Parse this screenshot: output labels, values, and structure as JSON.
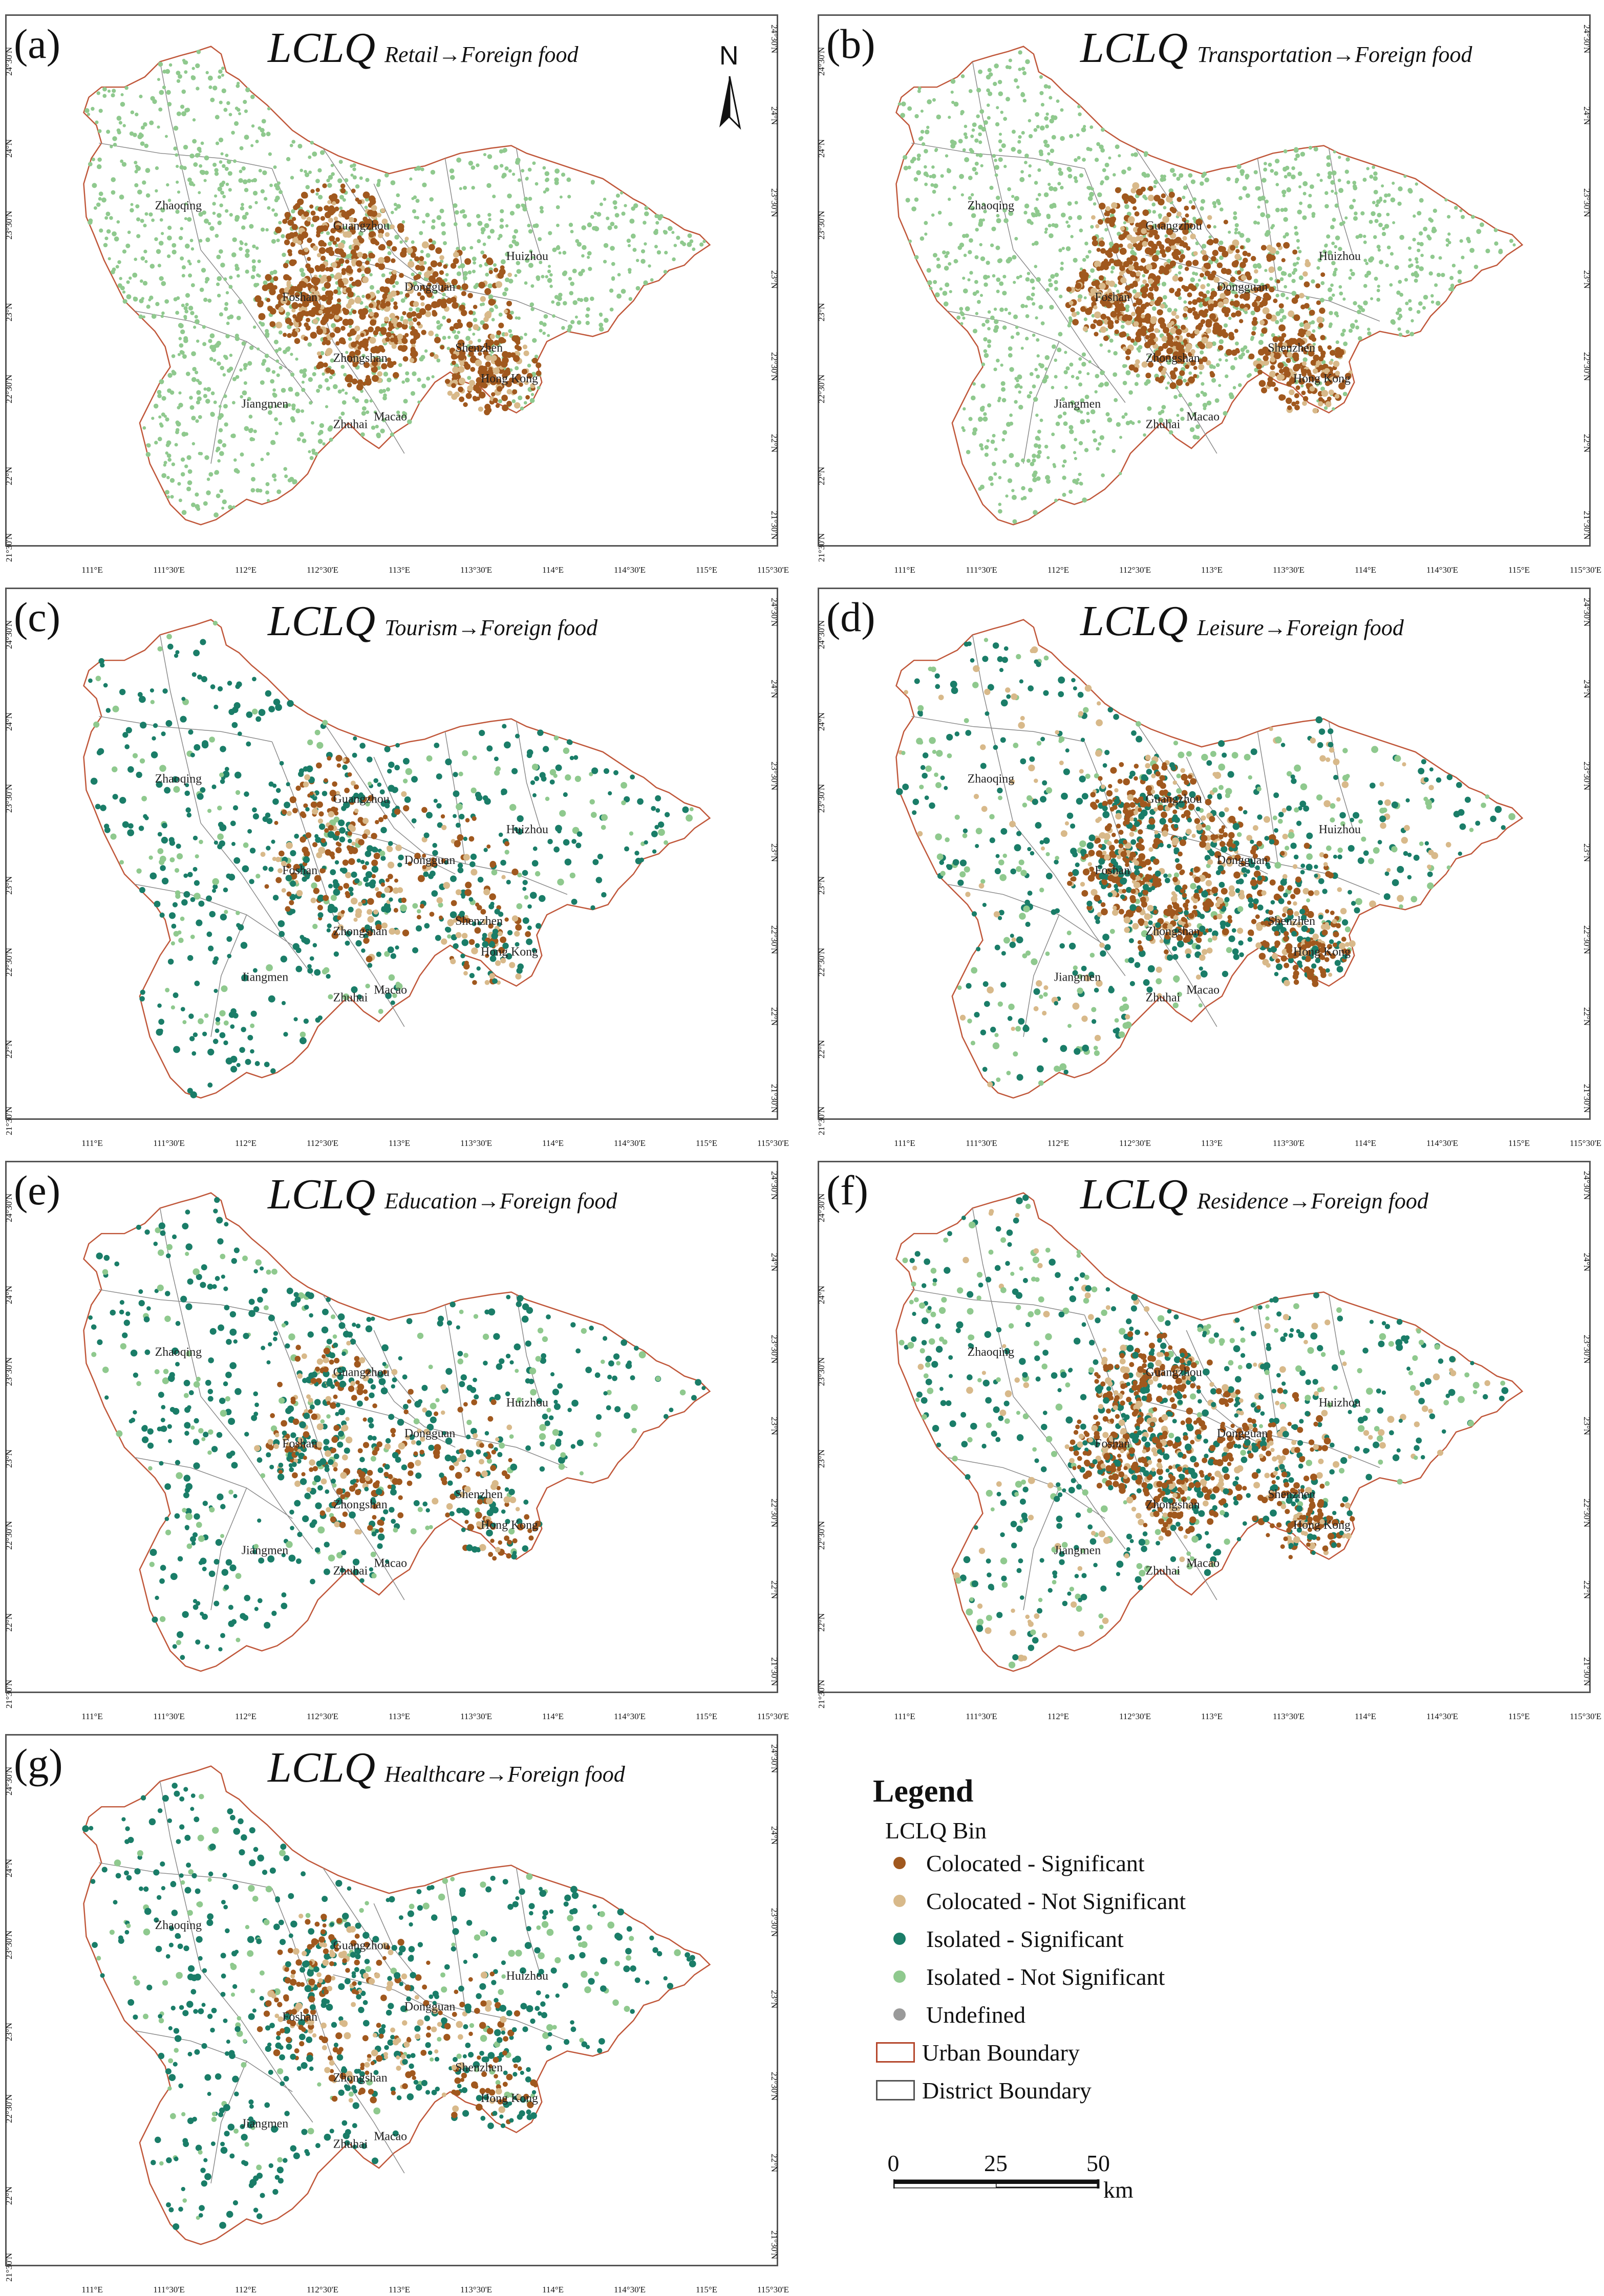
{
  "panels": [
    {
      "id": "a",
      "label": "(a)",
      "title_main": "LCLQ",
      "title_sub": "Retail→Foreign food",
      "dominant": "light-green"
    },
    {
      "id": "b",
      "label": "(b)",
      "title_main": "LCLQ",
      "title_sub": "Transportation→Foreign food",
      "dominant": "light-green"
    },
    {
      "id": "c",
      "label": "(c)",
      "title_main": "LCLQ",
      "title_sub": "Tourism→Foreign food",
      "dominant": "dark-teal"
    },
    {
      "id": "d",
      "label": "(d)",
      "title_main": "LCLQ",
      "title_sub": "Leisure→Foreign food",
      "dominant": "mixed"
    },
    {
      "id": "e",
      "label": "(e)",
      "title_main": "LCLQ",
      "title_sub": "Education→Foreign food",
      "dominant": "dark-teal"
    },
    {
      "id": "f",
      "label": "(f)",
      "title_main": "LCLQ",
      "title_sub": "Residence→Foreign food",
      "dominant": "mixed"
    },
    {
      "id": "g",
      "label": "(g)",
      "title_main": "LCLQ",
      "title_sub": "Healthcare→Foreign food",
      "dominant": "dark-teal"
    }
  ],
  "north_arrow": "N",
  "cities": [
    "Zhaoqing",
    "Guangzhou",
    "Huizhou",
    "Foshan",
    "Dongguan",
    "Zhongshan",
    "Shenzhen",
    "Jiangmen",
    "Hong Kong",
    "Zhuhai",
    "Macao"
  ],
  "x_ticks": [
    "111°E",
    "111°30'E",
    "112°E",
    "112°30'E",
    "113°E",
    "113°30'E",
    "114°E",
    "114°30'E",
    "115°E",
    "115°30'E"
  ],
  "y_ticks": [
    "21°30'N",
    "22°N",
    "22°30'N",
    "23°N",
    "23°30'N",
    "24°N",
    "24°30'N"
  ],
  "legend": {
    "title": "Legend",
    "subtitle": "LCLQ Bin",
    "items": [
      {
        "label": "Colocated - Significant",
        "color": "#a0581e",
        "kind": "dot"
      },
      {
        "label": "Colocated - Not Significant",
        "color": "#d8b98a",
        "kind": "dot"
      },
      {
        "label": "Isolated - Significant",
        "color": "#1a7d68",
        "kind": "dot"
      },
      {
        "label": "Isolated - Not Significant",
        "color": "#8fc98e",
        "kind": "dot"
      },
      {
        "label": "Undefined",
        "color": "#9a9a9a",
        "kind": "dot"
      },
      {
        "label": "Urban Boundary",
        "color": "#b5472c",
        "kind": "box"
      },
      {
        "label": "District Boundary",
        "color": "#555555",
        "kind": "box"
      }
    ]
  },
  "scale": {
    "labels": [
      "0",
      "25",
      "50"
    ],
    "unit": "km"
  },
  "colors": {
    "col_sig": "#a0581e",
    "col_ns": "#d8b98a",
    "iso_sig": "#1a7d68",
    "iso_ns": "#8fc98e",
    "undefined": "#9a9a9a",
    "urban": "#c0573a",
    "district": "#8a8a8a"
  }
}
